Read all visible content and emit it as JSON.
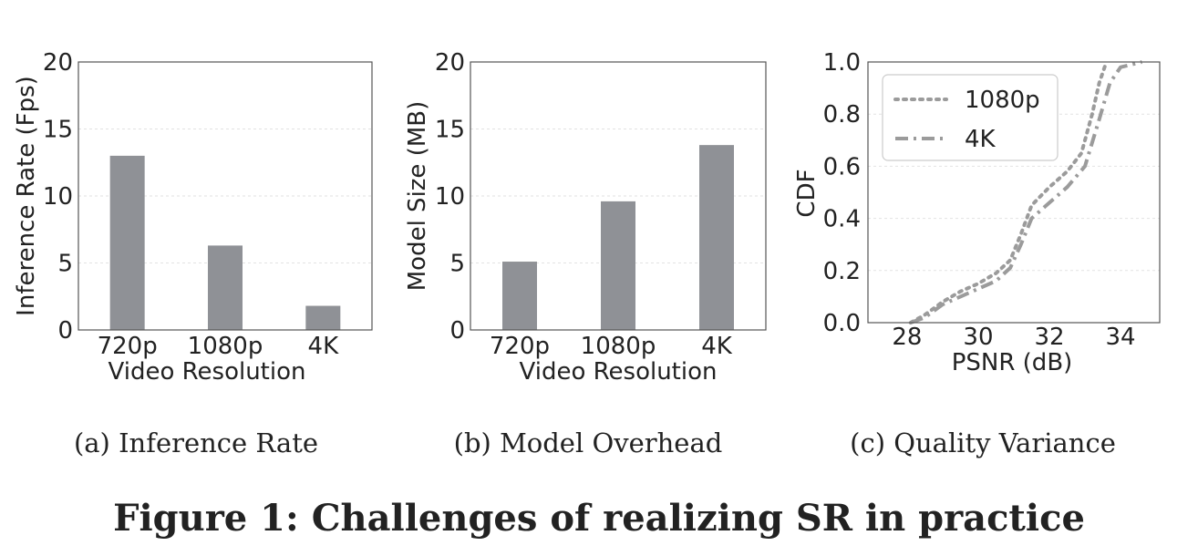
{
  "figure_caption": "Figure 1: Challenges of realizing SR in practice",
  "subcaptions": [
    "(a)  Inference Rate",
    "(b)  Model Overhead",
    "(c)  Quality Variance"
  ],
  "colors": {
    "bar": "#8f9196",
    "line": "#9b9b9b",
    "axis": "#555555",
    "grid": "#e2e2e2",
    "text": "#222222"
  },
  "chart_data": [
    {
      "type": "bar",
      "xlabel": "Video Resolution",
      "ylabel": "Inference Rate (Fps)",
      "categories": [
        "720p",
        "1080p",
        "4K"
      ],
      "values": [
        13.0,
        6.3,
        1.8
      ],
      "ylim": [
        0,
        20
      ],
      "yticks": [
        0,
        5,
        10,
        15,
        20
      ],
      "grid": true
    },
    {
      "type": "bar",
      "xlabel": "Video Resolution",
      "ylabel": "Model Size (MB)",
      "categories": [
        "720p",
        "1080p",
        "4K"
      ],
      "values": [
        5.1,
        9.6,
        13.8
      ],
      "ylim": [
        0,
        20
      ],
      "yticks": [
        0,
        5,
        10,
        15,
        20
      ],
      "grid": true
    },
    {
      "type": "line",
      "xlabel": "PSNR (dB)",
      "ylabel": "CDF",
      "xlim": [
        26.9,
        35.1
      ],
      "ylim": [
        0,
        1.0
      ],
      "xticks": [
        28,
        30,
        32,
        34
      ],
      "yticks": [
        "0.0",
        "0.2",
        "0.4",
        "0.6",
        "0.8",
        "1.0"
      ],
      "grid": true,
      "legend_position": "top-left",
      "series": [
        {
          "name": "1080p",
          "style": "dotted",
          "points": [
            [
              28.1,
              0.0
            ],
            [
              28.5,
              0.03
            ],
            [
              29.0,
              0.08
            ],
            [
              29.5,
              0.12
            ],
            [
              30.0,
              0.15
            ],
            [
              30.5,
              0.19
            ],
            [
              30.9,
              0.24
            ],
            [
              31.2,
              0.34
            ],
            [
              31.5,
              0.45
            ],
            [
              32.0,
              0.52
            ],
            [
              32.5,
              0.58
            ],
            [
              32.9,
              0.65
            ],
            [
              33.2,
              0.8
            ],
            [
              33.4,
              0.92
            ],
            [
              33.6,
              1.0
            ]
          ]
        },
        {
          "name": "4K",
          "style": "dashdot",
          "points": [
            [
              28.1,
              0.0
            ],
            [
              28.5,
              0.02
            ],
            [
              29.0,
              0.07
            ],
            [
              29.5,
              0.1
            ],
            [
              30.0,
              0.13
            ],
            [
              30.5,
              0.16
            ],
            [
              30.9,
              0.21
            ],
            [
              31.2,
              0.3
            ],
            [
              31.5,
              0.4
            ],
            [
              32.0,
              0.46
            ],
            [
              32.5,
              0.52
            ],
            [
              33.0,
              0.6
            ],
            [
              33.4,
              0.78
            ],
            [
              33.7,
              0.92
            ],
            [
              34.0,
              0.98
            ],
            [
              34.6,
              1.0
            ]
          ]
        }
      ]
    }
  ]
}
